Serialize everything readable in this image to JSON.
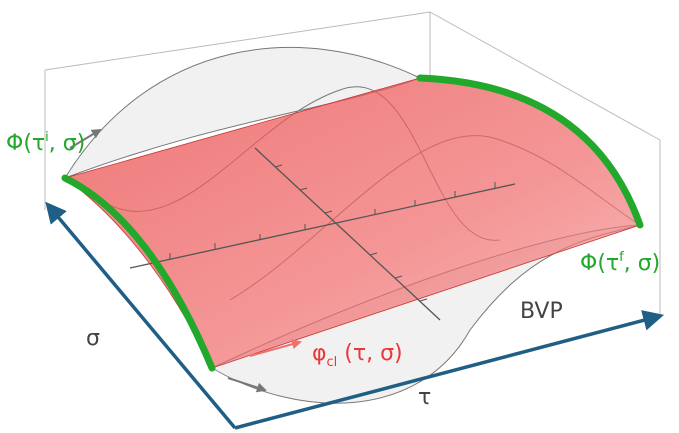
{
  "labels": {
    "initial": {
      "prefix": "Φ(τ",
      "sup": "i",
      "suffix": ", σ)"
    },
    "final": {
      "prefix": "Φ(τ",
      "sup": "f",
      "suffix": ", σ)"
    },
    "classical": {
      "prefix": "φ",
      "sub": "cl",
      "suffix": " (τ, σ)"
    },
    "bvp": "BVP",
    "sigma_axis": "σ",
    "tau_axis": "τ"
  }
}
